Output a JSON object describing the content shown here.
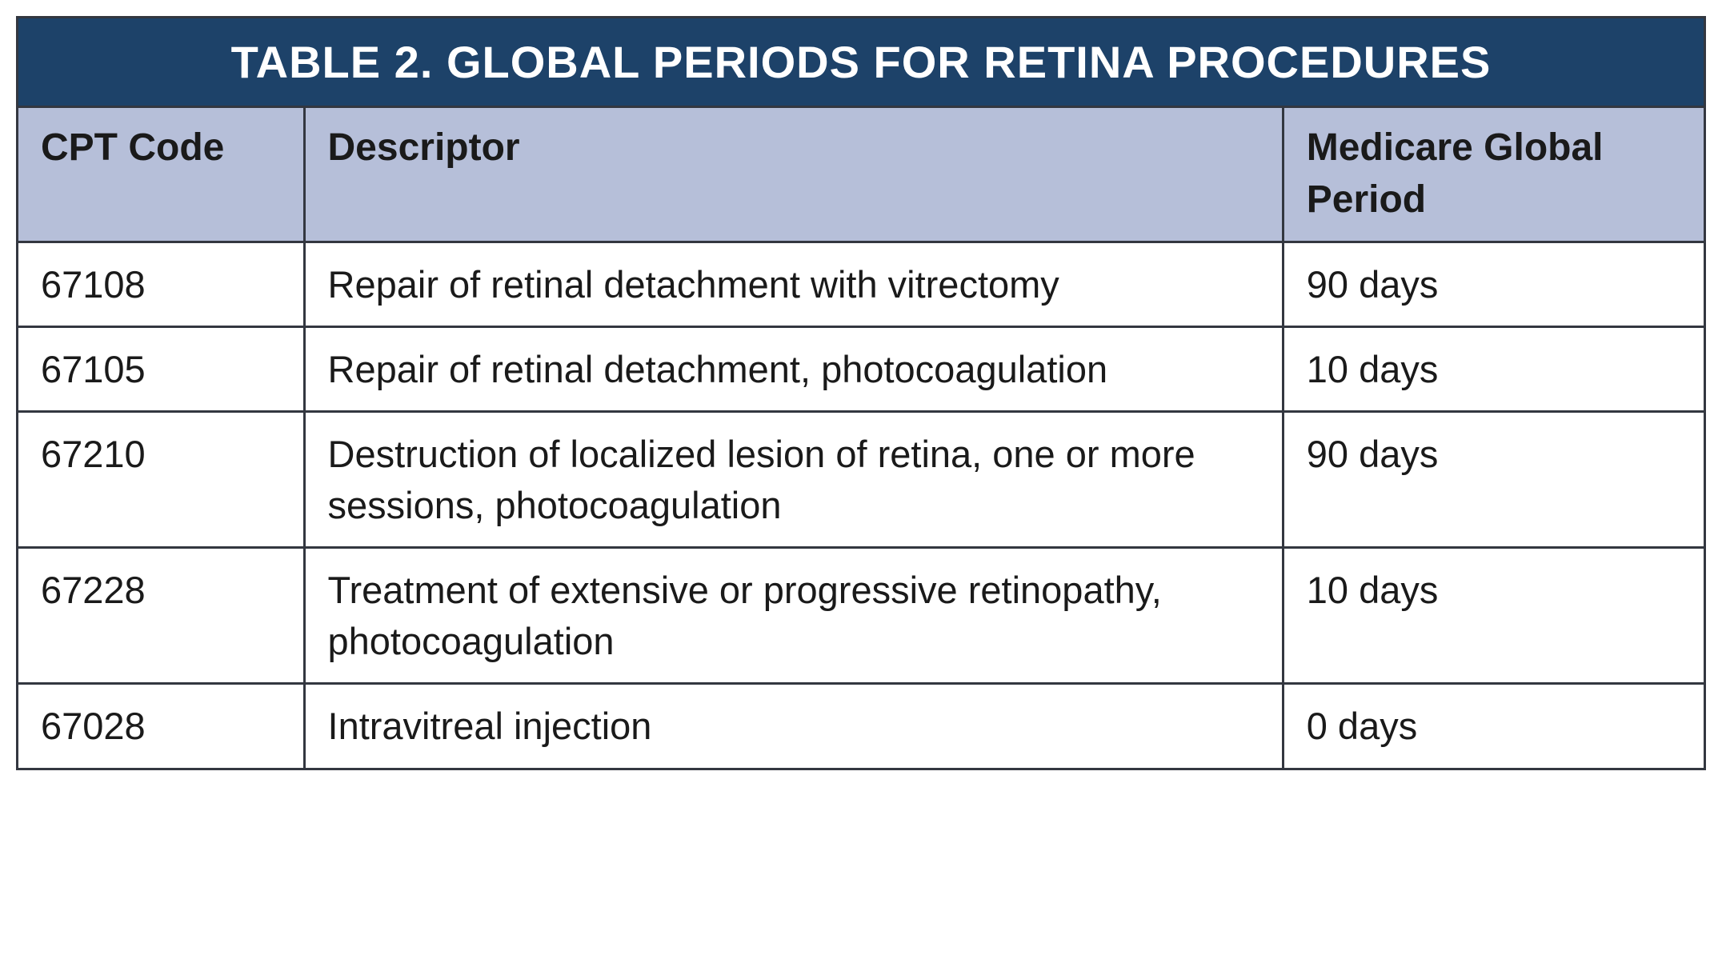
{
  "table": {
    "title": "TABLE 2. GLOBAL PERIODS FOR RETINA PROCEDURES",
    "titleBgColor": "#1d4269",
    "titleTextColor": "#ffffff",
    "titleFontSize": 56,
    "titleFontWeight": 700,
    "headerBgColor": "#b6bfd9",
    "headerTextColor": "#1a1a1a",
    "headerFontSize": 48,
    "headerFontWeight": 600,
    "bodyBgColor": "#ffffff",
    "bodyTextColor": "#1a1a1a",
    "bodyFontSize": 47,
    "borderColor": "#333740",
    "borderWidth": 3,
    "columns": [
      {
        "key": "code",
        "label": "CPT Code",
        "width": "17%"
      },
      {
        "key": "descriptor",
        "label": "Descriptor",
        "width": "58%"
      },
      {
        "key": "period",
        "label": "Medicare Global Period",
        "width": "25%"
      }
    ],
    "rows": [
      {
        "code": "67108",
        "descriptor": "Repair of retinal detachment with vitrectomy",
        "period": "90 days"
      },
      {
        "code": "67105",
        "descriptor": "Repair of retinal detachment, photocoagulation",
        "period": "10 days"
      },
      {
        "code": "67210",
        "descriptor": "Destruction of localized lesion of retina, one or more sessions, photocoagulation",
        "period": "90 days"
      },
      {
        "code": "67228",
        "descriptor": "Treatment of extensive or progressive retinopathy, photocoagulation",
        "period": "10 days"
      },
      {
        "code": "67028",
        "descriptor": "Intravitreal injection",
        "period": "0 days"
      }
    ]
  }
}
